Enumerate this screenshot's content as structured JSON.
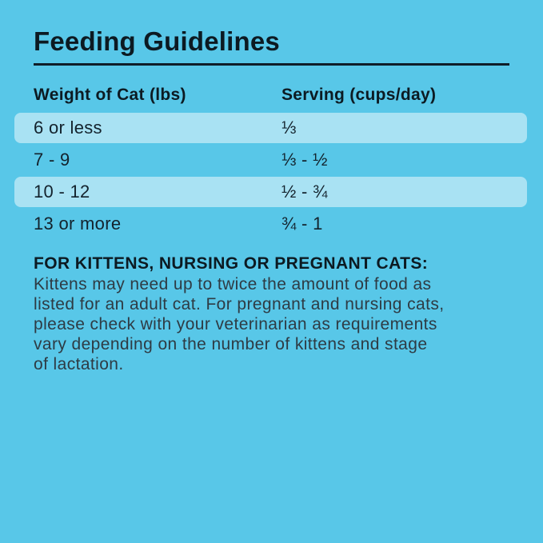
{
  "colors": {
    "background": "#58C7E8",
    "highlight_row": "#A9E2F3",
    "heading_text": "#0C1A22",
    "table_text": "#13222C",
    "body_text": "#2E3B44",
    "divider": "#0F1E28"
  },
  "title": "Feeding Guidelines",
  "table": {
    "columns": {
      "weight": "Weight of Cat (lbs)",
      "serving": "Serving (cups/day)"
    },
    "rows": [
      {
        "weight": "6 or less",
        "serving": "⅓",
        "highlighted": true
      },
      {
        "weight": "7 - 9",
        "serving": "⅓ - ½",
        "highlighted": false
      },
      {
        "weight": "10 - 12",
        "serving": "½ - ¾",
        "highlighted": true
      },
      {
        "weight": "13 or more",
        "serving": "¾ - 1",
        "highlighted": false
      }
    ]
  },
  "note": {
    "heading": "FOR KITTENS, NURSING OR PREGNANT CATS:",
    "body": "Kittens may need up to twice the amount of food as\nlisted for an adult cat. For pregnant and nursing cats,\nplease check with your veterinarian as requirements\nvary depending on the number of kittens and stage\nof lactation."
  }
}
